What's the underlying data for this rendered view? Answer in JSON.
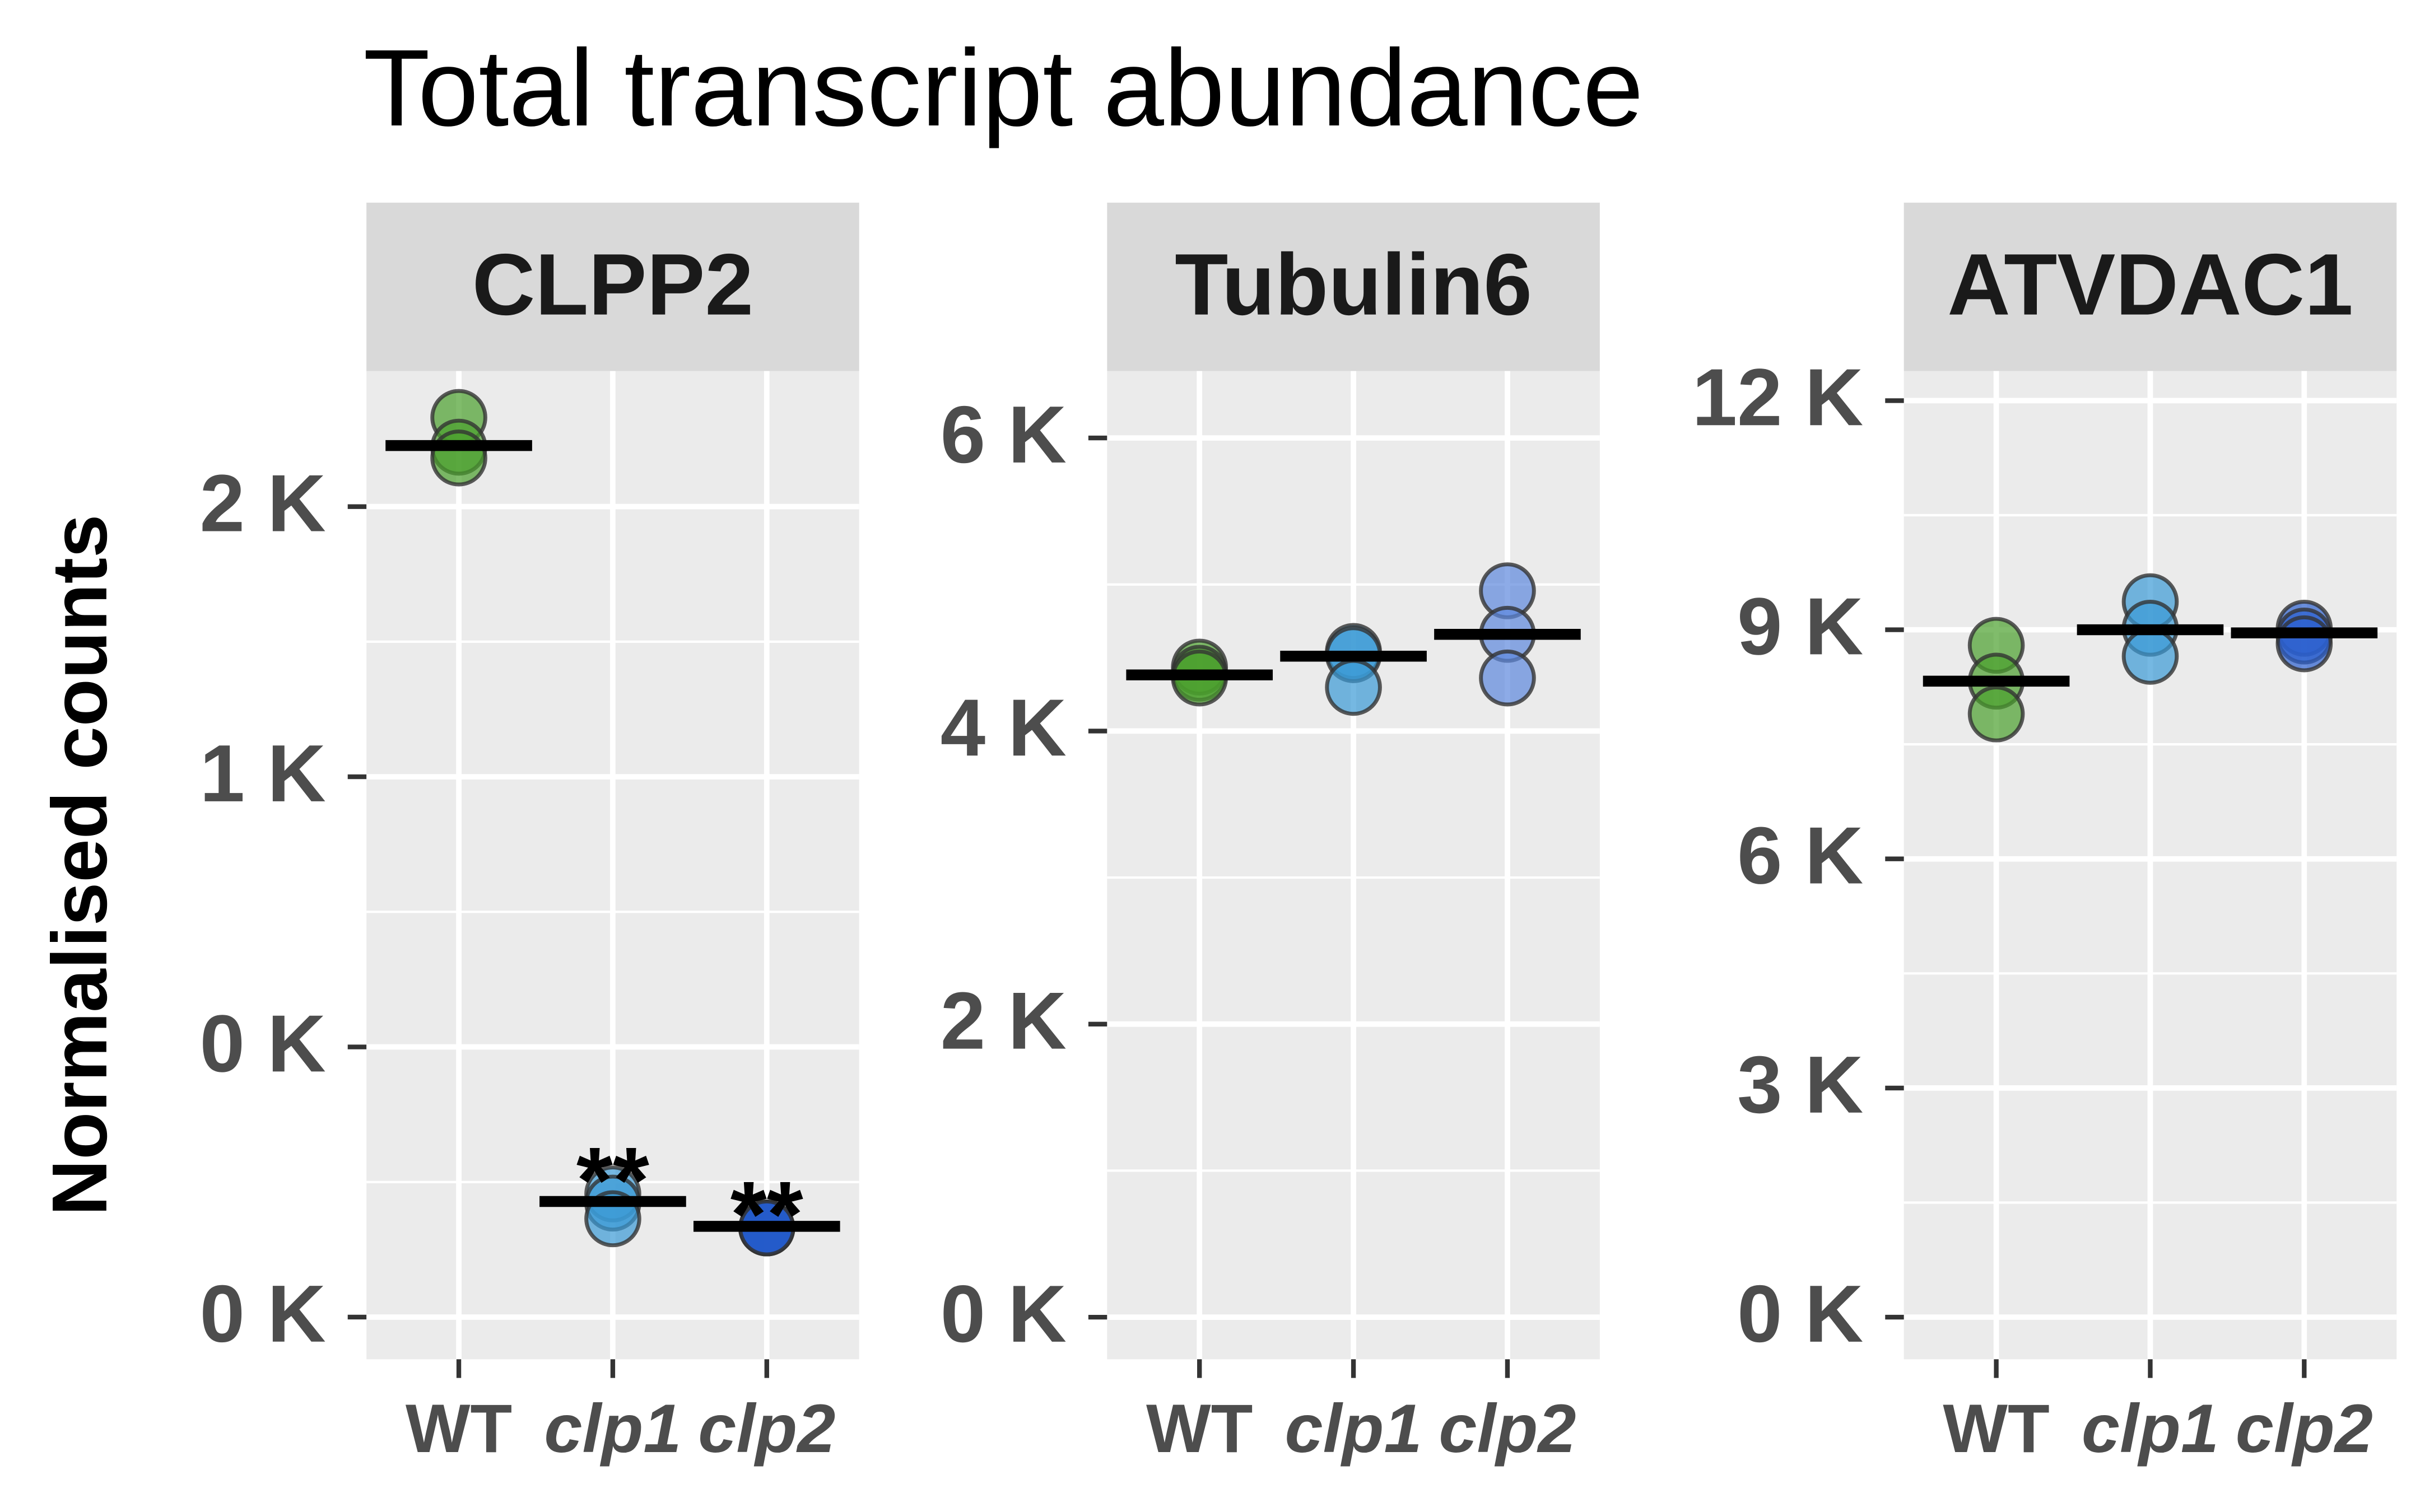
{
  "title": "Total transcript abundance",
  "y_label": "Normalised counts",
  "chart_data": [
    {
      "type": "strip",
      "title": "CLPP2",
      "categories": [
        "WT",
        "clp1",
        "clp2"
      ],
      "italic": [
        false,
        true,
        true
      ],
      "colors": [
        "#4aa02c",
        "#3b9ad6",
        "#1f57c9"
      ],
      "values": [
        [
          1665,
          1610,
          1590
        ],
        [
          228,
          211,
          182
        ],
        [
          165,
          165,
          165
        ]
      ],
      "means": [
        1613,
        214,
        168
      ],
      "annotations": [
        {
          "category": "clp1",
          "text": "**"
        },
        {
          "category": "clp2",
          "text": "**"
        }
      ],
      "ylim": [
        -78,
        1751
      ],
      "yticks": [
        {
          "value": 0,
          "label": "0 K"
        },
        {
          "value": 500,
          "label": "0 K"
        },
        {
          "value": 1000,
          "label": "1 K"
        },
        {
          "value": 1500,
          "label": "2 K"
        }
      ],
      "grid": true
    },
    {
      "type": "strip",
      "title": "Tubulin6",
      "categories": [
        "WT",
        "clp1",
        "clp2"
      ],
      "italic": [
        false,
        true,
        true
      ],
      "colors": [
        "#4aa02c",
        "#3b9ad6",
        "#5d88dd"
      ],
      "values": [
        [
          4436,
          4394,
          4362
        ],
        [
          4543,
          4521,
          4298
        ],
        [
          4957,
          4660,
          4362
        ]
      ],
      "means": [
        4383,
        4511,
        4660
      ],
      "ylim": [
        -287,
        6457
      ],
      "yticks": [
        {
          "value": 0,
          "label": "0 K"
        },
        {
          "value": 2000,
          "label": "2 K"
        },
        {
          "value": 4000,
          "label": "4 K"
        },
        {
          "value": 6000,
          "label": "6 K"
        }
      ],
      "grid": true
    },
    {
      "type": "strip",
      "title": "ATVDAC1",
      "categories": [
        "WT",
        "clp1",
        "clp2"
      ],
      "italic": [
        false,
        true,
        true
      ],
      "colors": [
        "#4aa02c",
        "#3b9ad6",
        "#2b5fcf"
      ],
      "values": [
        [
          8796,
          8327,
          7898
        ],
        [
          9367,
          9020,
          8653
        ],
        [
          9020,
          8918,
          8816
        ]
      ],
      "means": [
        8327,
        9000,
        8959
      ],
      "ylim": [
        -551,
        12388
      ],
      "yticks": [
        {
          "value": 0,
          "label": "0 K"
        },
        {
          "value": 3000,
          "label": "3 K"
        },
        {
          "value": 6000,
          "label": "6 K"
        },
        {
          "value": 9000,
          "label": "9 K"
        },
        {
          "value": 12000,
          "label": "12 K"
        }
      ],
      "grid": true
    }
  ]
}
